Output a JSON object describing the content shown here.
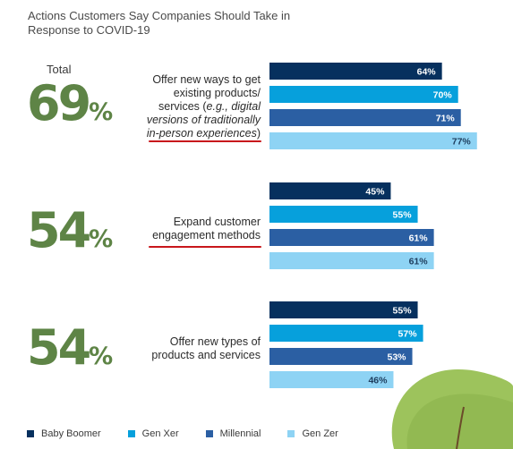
{
  "title": "Actions Customers Say Companies Should Take in Response to COVID-19",
  "colors": {
    "Baby Boomer": "#06305e",
    "Gen Xer": "#06a0dc",
    "Millennial": "#2b5fa3",
    "Gen Zer": "#8ed3f4",
    "big_number": "#5e8446",
    "underline": "#c8171c"
  },
  "groups": [
    {
      "total_label": "Total",
      "total_value": "69",
      "total_pct": "%",
      "label_lines": [
        "Offer new ways to get",
        "existing products/",
        "services ("
      ],
      "label_italic": [
        "e.g., digital",
        "versions of traditionally",
        "in-person experiences"
      ],
      "label_close": ")"
    },
    {
      "total_label": "",
      "total_value": "54",
      "total_pct": "%",
      "label_line1": "Expand customer",
      "label_line2": "engagement methods"
    },
    {
      "total_label": "",
      "total_value": "54",
      "total_pct": "%",
      "label_line1": "Offer new types of",
      "label_line2": "products and services"
    }
  ],
  "chart_data": {
    "type": "bar",
    "orientation": "horizontal",
    "categories": [
      "Offer new ways to get existing products/ services (e.g., digital versions of traditionally in-person experiences)",
      "Expand customer engagement methods",
      "Offer new types of products and services"
    ],
    "series": [
      {
        "name": "Baby Boomer",
        "values": [
          64,
          45,
          55
        ]
      },
      {
        "name": "Gen Xer",
        "values": [
          70,
          55,
          57
        ]
      },
      {
        "name": "Millennial",
        "values": [
          71,
          61,
          53
        ]
      },
      {
        "name": "Gen Zer",
        "values": [
          77,
          61,
          46
        ]
      }
    ],
    "totals": [
      69,
      54,
      54
    ],
    "value_suffix": "%",
    "xlim": [
      0,
      100
    ],
    "grid": false,
    "legend_position": "bottom"
  }
}
